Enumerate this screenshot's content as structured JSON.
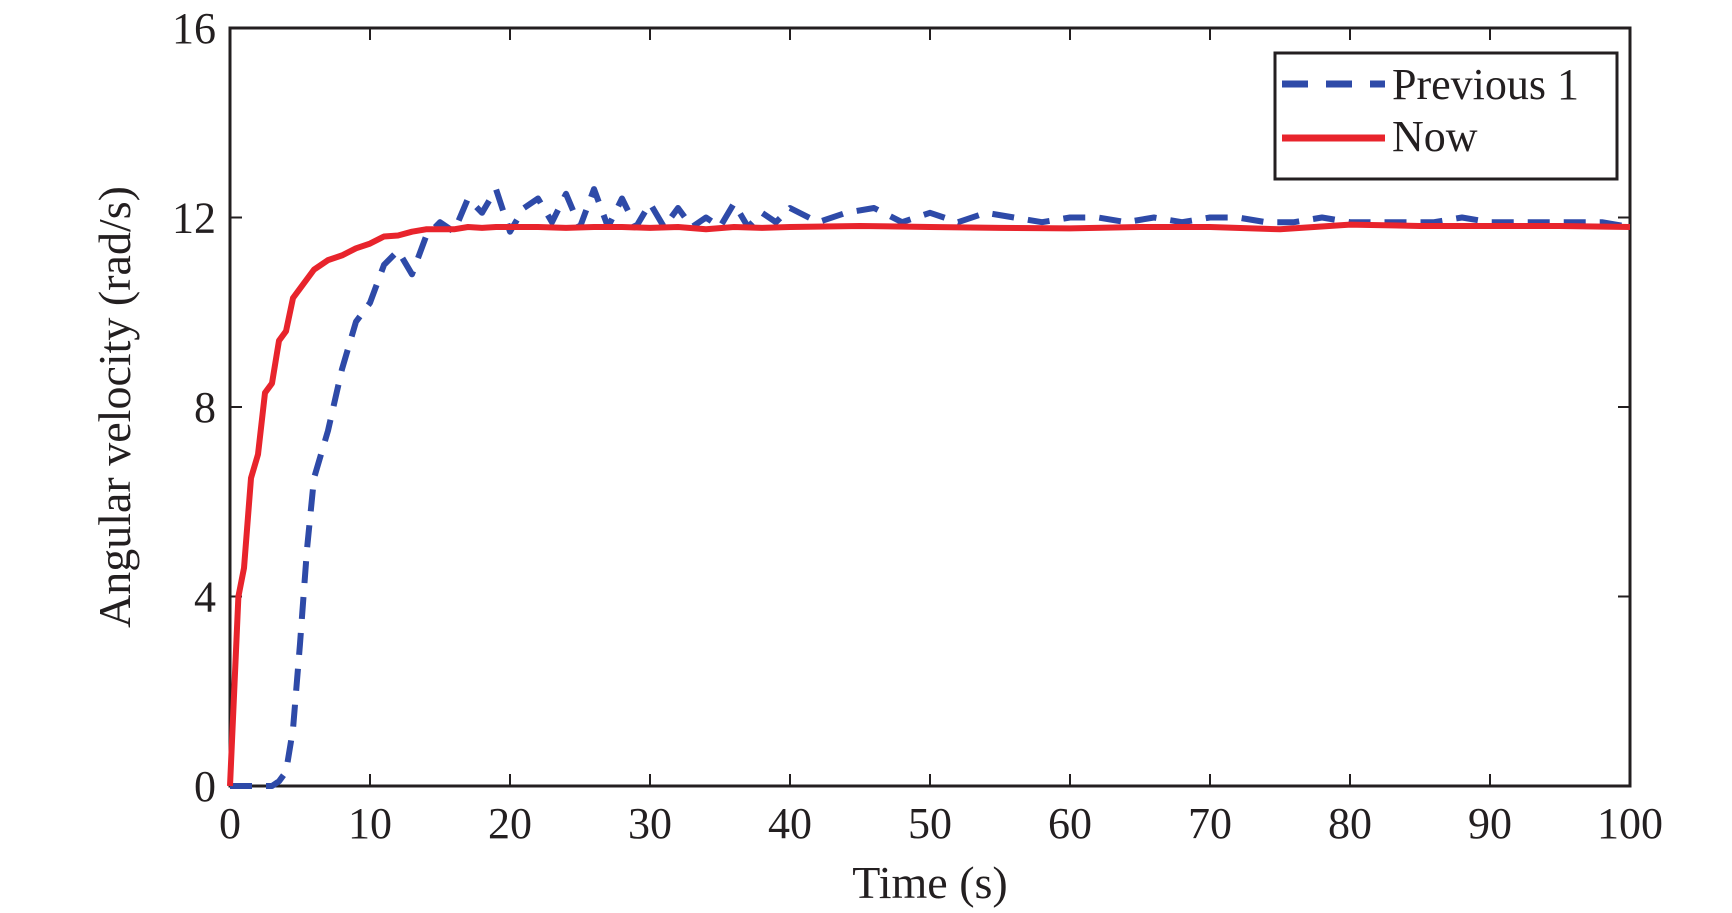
{
  "chart_data": {
    "type": "line",
    "title": "",
    "xlabel": "Time (s)",
    "ylabel": "Angular velocity (rad/s)",
    "xlim": [
      0,
      100
    ],
    "ylim": [
      0,
      16
    ],
    "xticks": [
      0,
      10,
      20,
      30,
      40,
      50,
      60,
      70,
      80,
      90,
      100
    ],
    "yticks": [
      0,
      4,
      8,
      12,
      16
    ],
    "grid": false,
    "legend_position": "top-right",
    "series": [
      {
        "name": "Previous 1",
        "color": "#2e4aa8",
        "style": "dashed",
        "x": [
          0,
          1,
          2,
          3,
          3.5,
          4,
          4.5,
          5,
          5.5,
          6,
          7,
          8,
          9,
          10,
          11,
          12,
          13,
          14,
          15,
          16,
          17,
          18,
          19,
          20,
          21,
          22,
          23,
          24,
          25,
          26,
          27,
          28,
          29,
          30,
          31,
          32,
          33,
          34,
          35,
          36,
          37,
          38,
          39,
          40,
          42,
          44,
          46,
          48,
          50,
          52,
          54,
          56,
          58,
          60,
          62,
          64,
          66,
          68,
          70,
          72,
          74,
          76,
          78,
          80,
          82,
          84,
          86,
          88,
          90,
          92,
          94,
          96,
          98,
          100
        ],
        "values": [
          0,
          0,
          0,
          0,
          0.1,
          0.3,
          1.2,
          3.0,
          5.0,
          6.5,
          7.5,
          8.8,
          9.8,
          10.2,
          11.0,
          11.3,
          10.8,
          11.6,
          11.9,
          11.7,
          12.4,
          12.1,
          12.6,
          11.7,
          12.2,
          12.4,
          11.9,
          12.5,
          11.8,
          12.6,
          11.8,
          12.4,
          11.8,
          12.3,
          11.8,
          12.2,
          11.8,
          12.0,
          11.8,
          12.3,
          11.8,
          12.1,
          11.9,
          12.2,
          11.9,
          12.1,
          12.2,
          11.9,
          12.1,
          11.9,
          12.1,
          12.0,
          11.9,
          12.0,
          12.0,
          11.9,
          12.0,
          11.9,
          12.0,
          12.0,
          11.9,
          11.9,
          12.0,
          11.9,
          11.9,
          11.9,
          11.9,
          12.0,
          11.9,
          11.9,
          11.9,
          11.9,
          11.9,
          11.8
        ]
      },
      {
        "name": "Now",
        "color": "#e8242c",
        "style": "solid",
        "x": [
          0,
          0.3,
          0.6,
          1,
          1.5,
          2,
          2.5,
          3,
          3.5,
          4,
          4.5,
          5,
          6,
          7,
          8,
          9,
          10,
          11,
          12,
          13,
          14,
          15,
          16,
          17,
          18,
          19,
          20,
          22,
          24,
          26,
          28,
          30,
          32,
          34,
          36,
          38,
          40,
          45,
          50,
          55,
          60,
          65,
          70,
          75,
          80,
          85,
          90,
          95,
          100
        ],
        "values": [
          0,
          2.0,
          4.0,
          4.6,
          6.5,
          7.0,
          8.3,
          8.5,
          9.4,
          9.6,
          10.3,
          10.5,
          10.9,
          11.1,
          11.2,
          11.35,
          11.45,
          11.6,
          11.62,
          11.7,
          11.75,
          11.75,
          11.75,
          11.8,
          11.78,
          11.8,
          11.8,
          11.8,
          11.78,
          11.8,
          11.8,
          11.78,
          11.8,
          11.75,
          11.8,
          11.78,
          11.8,
          11.82,
          11.8,
          11.78,
          11.77,
          11.8,
          11.8,
          11.75,
          11.85,
          11.82,
          11.82,
          11.82,
          11.8
        ]
      }
    ]
  }
}
